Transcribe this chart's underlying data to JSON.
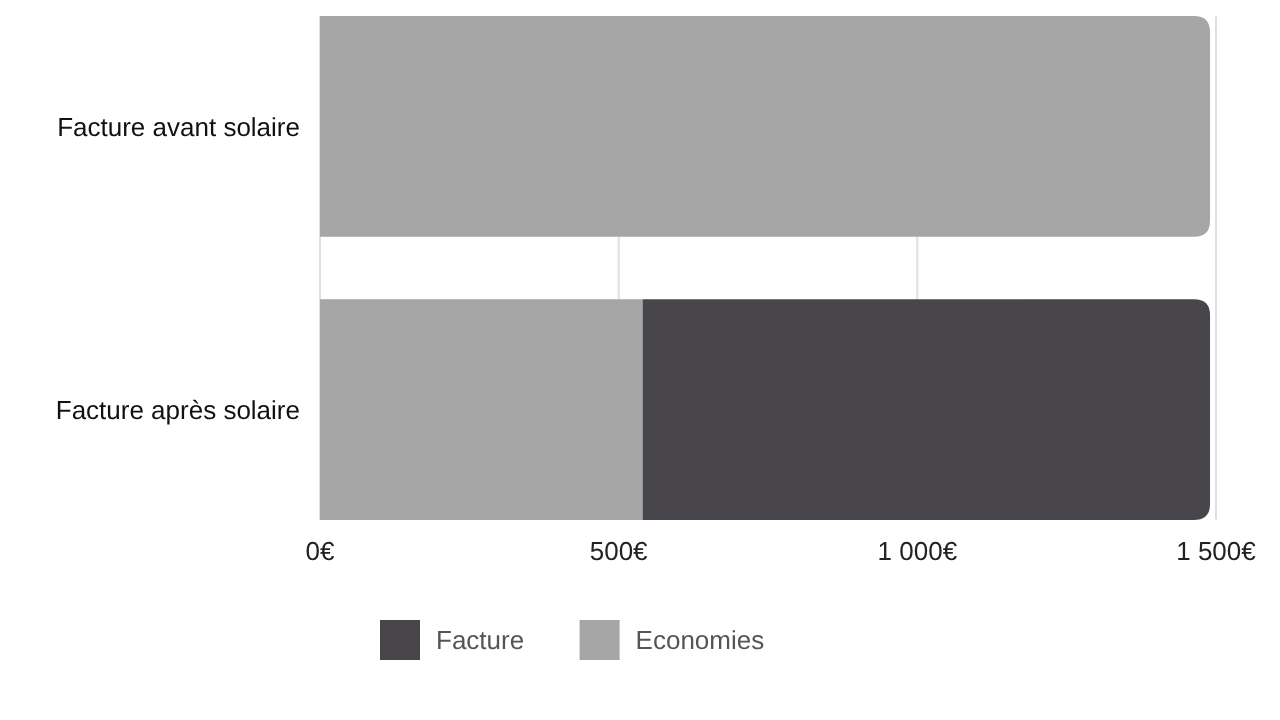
{
  "chart_data": {
    "type": "bar",
    "orientation": "horizontal",
    "stacked": true,
    "categories": [
      "Facture avant solaire",
      "Facture après solaire"
    ],
    "series": [
      {
        "name": "Economies",
        "color": "#a6a6a6",
        "values": [
          null,
          540
        ]
      },
      {
        "name": "Facture",
        "color": "#48464b",
        "colors": [
          "#a6a6a6",
          "#48464b"
        ],
        "values": [
          1490,
          950
        ]
      }
    ],
    "xlim": [
      0,
      1500
    ],
    "xticks": [
      {
        "value": 0,
        "label": "0€"
      },
      {
        "value": 500,
        "label": "500€"
      },
      {
        "value": 1000,
        "label": "1 000€"
      },
      {
        "value": 1500,
        "label": "1 500€"
      }
    ],
    "grid": "x",
    "legend": "bottom"
  }
}
